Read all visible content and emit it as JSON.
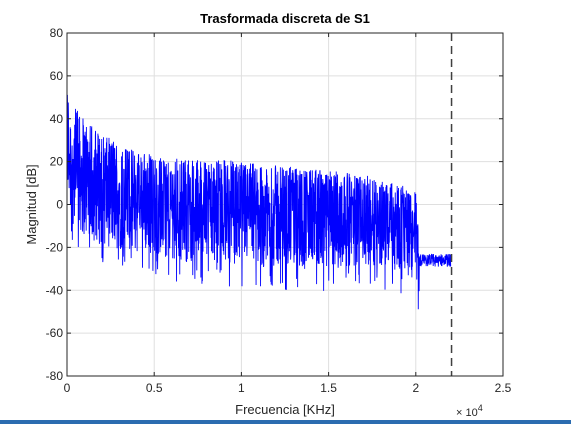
{
  "chart_data": {
    "type": "line",
    "title": "Trasformada discreta de S1",
    "xlabel": "Frecuencia [KHz]",
    "ylabel": "Magnitud [dB]",
    "xlim": [
      0,
      25000
    ],
    "ylim": [
      -80,
      80
    ],
    "x_ticks": [
      0,
      5000,
      10000,
      15000,
      20000,
      25000
    ],
    "x_tick_labels": [
      "0",
      "0.5",
      "1",
      "1.5",
      "2",
      "2.5"
    ],
    "x_exponent_label": "× 10",
    "x_exponent_power": "4",
    "y_ticks": [
      -80,
      -60,
      -40,
      -20,
      0,
      20,
      40,
      60,
      80
    ],
    "y_tick_labels": [
      "-80",
      "-60",
      "-40",
      "-20",
      "0",
      "20",
      "40",
      "60",
      "80"
    ],
    "grid": true,
    "series": [
      {
        "color": "#0000ff",
        "envelope": {
          "x": [
            0,
            300,
            1000,
            2000,
            3000,
            4000,
            5000,
            6000,
            7000,
            8000,
            9000,
            10000,
            11000,
            12000,
            13000,
            14000,
            15000,
            16000,
            17000,
            18000,
            19000,
            20000,
            20200,
            20500,
            21000,
            22000
          ],
          "upper": [
            53,
            45,
            37,
            30,
            26,
            22,
            20,
            19,
            18,
            19,
            18,
            17,
            16,
            16,
            15,
            14,
            13,
            12,
            11,
            9,
            7,
            3,
            -22,
            -22,
            -22,
            -22
          ],
          "lower": [
            0,
            -12,
            -18,
            -22,
            -24,
            -25,
            -26,
            -28,
            -30,
            -30,
            -30,
            -31,
            -32,
            -33,
            -33,
            -33,
            -33,
            -32,
            -31,
            -32,
            -34,
            -38,
            -45,
            -40,
            -35,
            -32
          ]
        }
      }
    ],
    "reference_line": {
      "x": 22050,
      "style": "dashed",
      "color": "#404040"
    }
  }
}
